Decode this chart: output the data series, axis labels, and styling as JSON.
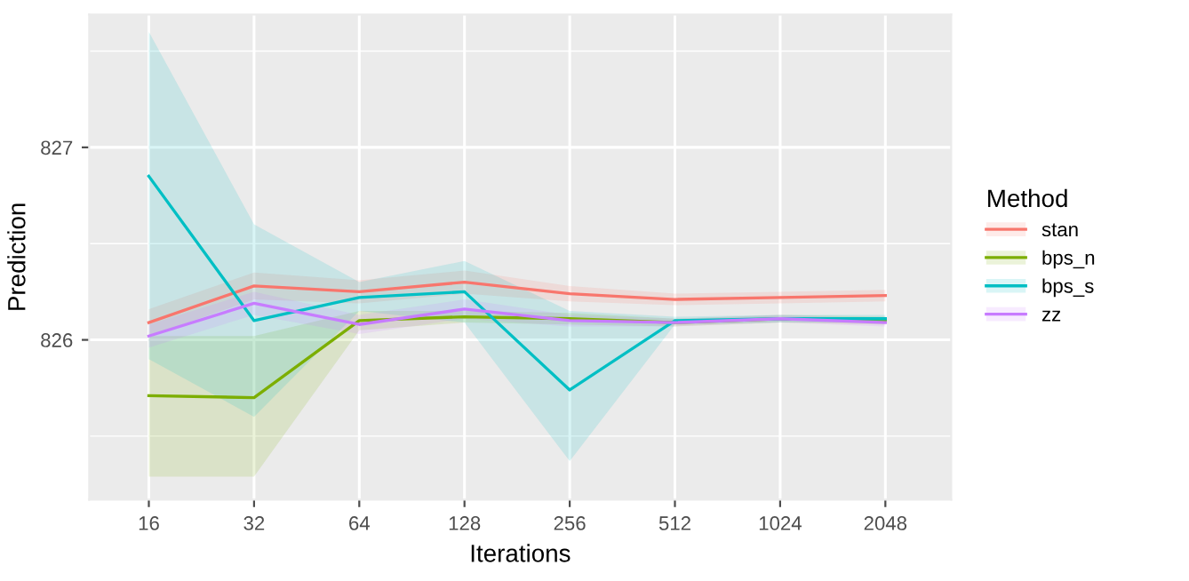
{
  "chart_data": {
    "type": "line",
    "xlabel": "Iterations",
    "ylabel": "Prediction",
    "legend_title": "Method",
    "legend": "right",
    "grid": true,
    "log": "x",
    "x": [
      16,
      32,
      64,
      128,
      256,
      512,
      1024,
      2048
    ],
    "xlim": [
      10.8,
      3160
    ],
    "xticks": [
      16,
      32,
      64,
      128,
      256,
      512,
      1024,
      2048
    ],
    "ylim": [
      825.17,
      827.69
    ],
    "yticks": [
      826,
      827
    ],
    "series": [
      {
        "name": "stan",
        "color": "#f8766d",
        "values": [
          826.09,
          826.28,
          826.25,
          826.3,
          826.24,
          826.21,
          826.22,
          826.23
        ],
        "lower": [
          826.02,
          826.21,
          826.19,
          826.24,
          826.2,
          826.18,
          826.19,
          826.2
        ],
        "upper": [
          826.16,
          826.35,
          826.31,
          826.36,
          826.28,
          826.24,
          826.25,
          826.26
        ]
      },
      {
        "name": "bps_n",
        "color": "#7cae00",
        "values": [
          825.71,
          825.7,
          826.1,
          826.12,
          826.11,
          826.09,
          826.11,
          826.1
        ],
        "lower": [
          825.29,
          825.29,
          826.05,
          826.09,
          826.08,
          826.07,
          826.09,
          826.08
        ],
        "upper": [
          826.02,
          826.02,
          826.15,
          826.15,
          826.14,
          826.11,
          826.13,
          826.12
        ]
      },
      {
        "name": "bps_s",
        "color": "#00bfc4",
        "values": [
          826.85,
          826.1,
          826.22,
          826.25,
          825.74,
          826.1,
          826.11,
          826.11
        ],
        "lower": [
          825.9,
          825.6,
          826.15,
          826.09,
          825.37,
          826.08,
          826.09,
          826.09
        ],
        "upper": [
          827.6,
          826.6,
          826.3,
          826.41,
          826.15,
          826.12,
          826.13,
          826.13
        ]
      },
      {
        "name": "zz",
        "color": "#c77cff",
        "values": [
          826.02,
          826.19,
          826.08,
          826.16,
          826.1,
          826.09,
          826.11,
          826.09
        ],
        "lower": [
          825.96,
          826.13,
          826.03,
          826.11,
          826.07,
          826.07,
          826.09,
          826.07
        ],
        "upper": [
          826.08,
          826.25,
          826.13,
          826.21,
          826.13,
          826.11,
          826.13,
          826.11
        ]
      }
    ]
  }
}
